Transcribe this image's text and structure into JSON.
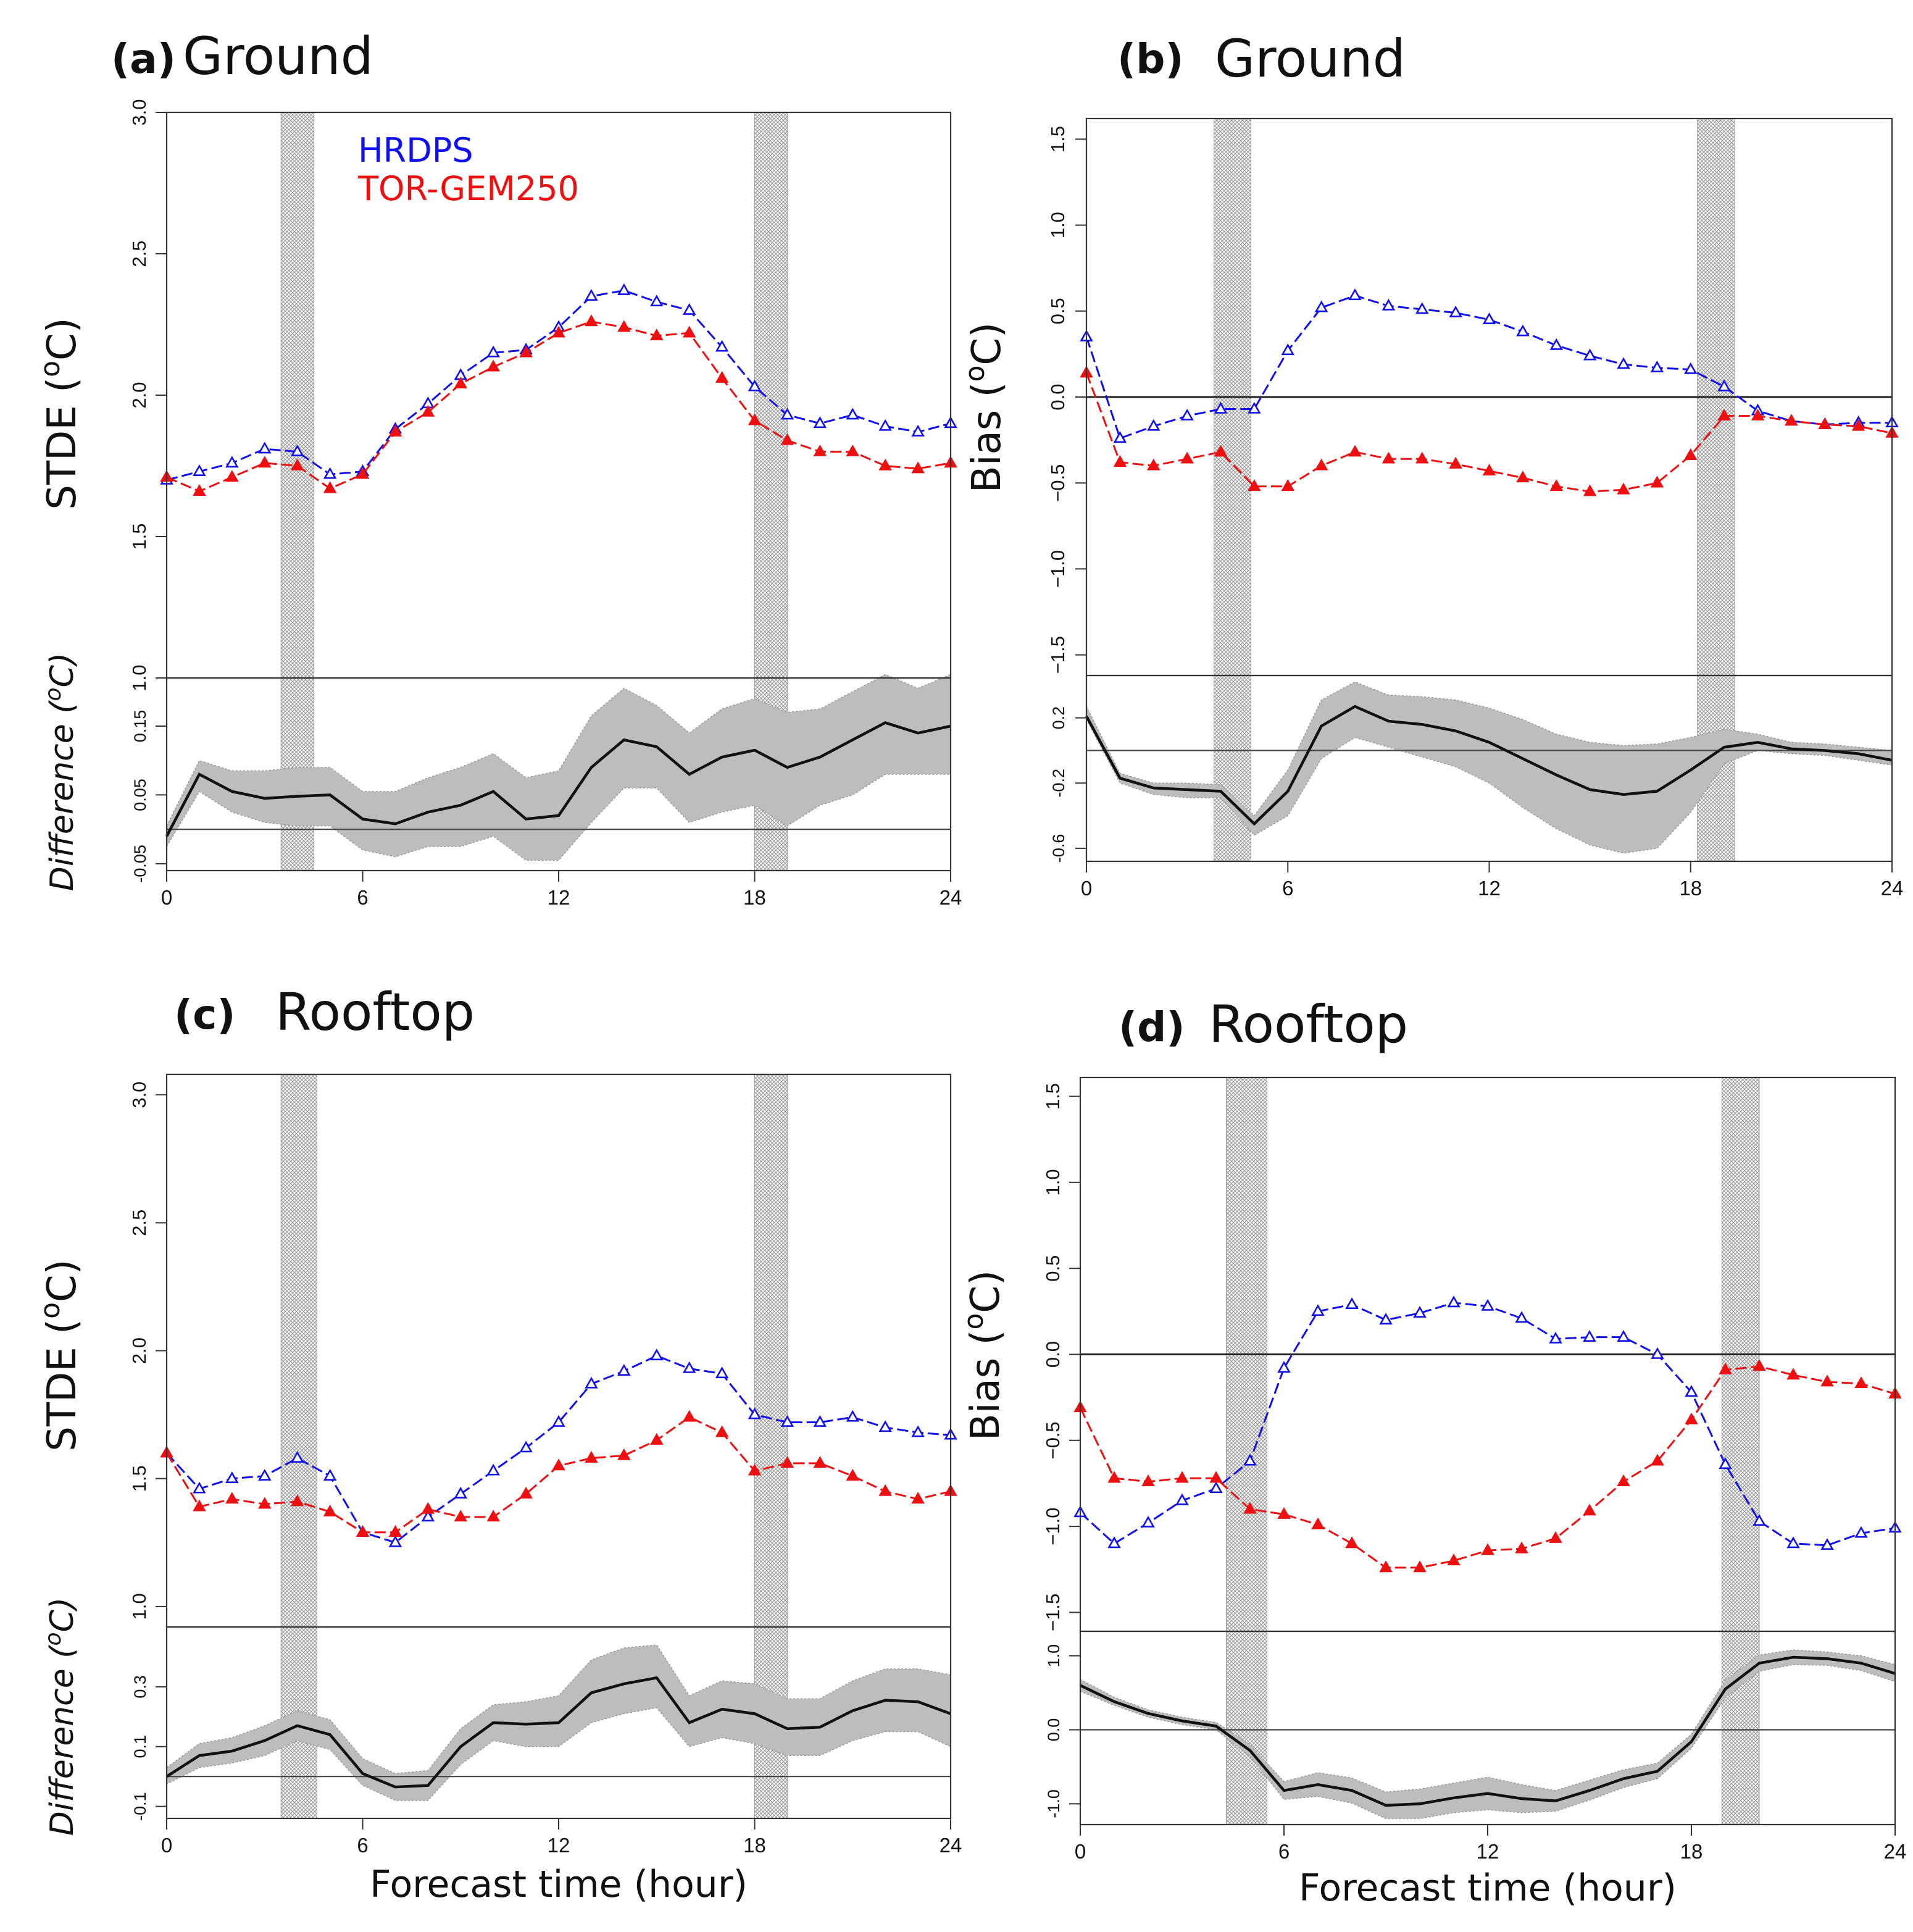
{
  "figure": {
    "legend": [
      {
        "name": "HRDPS",
        "color": "#1010ee"
      },
      {
        "name": "TOR-GEM250",
        "color": "#ee1010"
      }
    ],
    "colors": {
      "difference_line": "#111111",
      "difference_band": "#bdbdbd",
      "hatch": "#9a9a9a"
    }
  },
  "chart_data": [
    {
      "id": "a",
      "panel_label": "(a)",
      "title": "Ground",
      "type": "line",
      "ylabel": "STDE (oC)",
      "ylabel_main": "STDE (",
      "ylabel_sup": "o",
      "ylabel_unit": "C)",
      "diff_ylabel_main": "Difference (",
      "diff_ylabel_sup": "o",
      "diff_ylabel_unit": "C)",
      "xlabel": "",
      "x": [
        0,
        1,
        2,
        3,
        4,
        5,
        6,
        7,
        8,
        9,
        10,
        11,
        12,
        13,
        14,
        15,
        16,
        17,
        18,
        19,
        20,
        21,
        22,
        23,
        24
      ],
      "xlim": [
        0,
        24
      ],
      "xticks": [
        0,
        6,
        12,
        18,
        24
      ],
      "xtick_labels": [
        "0",
        "6",
        "12",
        "18",
        "24"
      ],
      "ylim": [
        1.0,
        3.0
      ],
      "yticks": [
        1.0,
        1.5,
        2.0,
        2.5,
        3.0
      ],
      "ytick_labels": [
        "1.0",
        "1.5",
        "2.0",
        "2.5",
        "3.0"
      ],
      "shaded_periods": [
        [
          3.5,
          4.5
        ],
        [
          18,
          19
        ]
      ],
      "series": [
        {
          "name": "HRDPS",
          "values": [
            1.7,
            1.73,
            1.76,
            1.81,
            1.8,
            1.72,
            1.73,
            1.88,
            1.97,
            2.07,
            2.15,
            2.16,
            2.24,
            2.35,
            2.37,
            2.33,
            2.3,
            2.17,
            2.03,
            1.93,
            1.9,
            1.93,
            1.89,
            1.87,
            1.9
          ]
        },
        {
          "name": "TOR-GEM250",
          "values": [
            1.71,
            1.66,
            1.71,
            1.76,
            1.75,
            1.67,
            1.72,
            1.87,
            1.94,
            2.04,
            2.1,
            2.15,
            2.22,
            2.26,
            2.24,
            2.21,
            2.22,
            2.06,
            1.91,
            1.84,
            1.8,
            1.8,
            1.75,
            1.74,
            1.76
          ]
        }
      ],
      "difference": {
        "ylim": [
          -0.06,
          0.22
        ],
        "yticks": [
          -0.05,
          0.05,
          0.15
        ],
        "ytick_labels": [
          "-0.05",
          "0.05",
          "0.15"
        ],
        "mean": [
          -0.01,
          0.08,
          0.055,
          0.045,
          0.048,
          0.05,
          0.015,
          0.008,
          0.025,
          0.035,
          0.055,
          0.015,
          0.02,
          0.09,
          0.13,
          0.12,
          0.08,
          0.105,
          0.115,
          0.09,
          0.105,
          0.13,
          0.155,
          0.14,
          0.15
        ],
        "lower": [
          -0.025,
          0.055,
          0.025,
          0.01,
          0.005,
          0.005,
          -0.03,
          -0.04,
          -0.025,
          -0.025,
          -0.01,
          -0.045,
          -0.045,
          0.01,
          0.06,
          0.06,
          0.01,
          0.025,
          0.035,
          0.005,
          0.035,
          0.05,
          0.08,
          0.08,
          0.08
        ],
        "upper": [
          0.005,
          0.1,
          0.085,
          0.085,
          0.09,
          0.09,
          0.055,
          0.055,
          0.075,
          0.09,
          0.11,
          0.075,
          0.085,
          0.165,
          0.205,
          0.18,
          0.14,
          0.175,
          0.19,
          0.17,
          0.175,
          0.2,
          0.225,
          0.205,
          0.225
        ]
      }
    },
    {
      "id": "b",
      "panel_label": "(b)",
      "title": "Ground",
      "type": "line",
      "ylabel": "Bias (oC)",
      "ylabel_main": "Bias (",
      "ylabel_sup": "o",
      "ylabel_unit": "C)",
      "diff_ylabel_main": "",
      "diff_ylabel_sup": "",
      "diff_ylabel_unit": "",
      "xlabel": "",
      "x": [
        0,
        1,
        2,
        3,
        4,
        5,
        6,
        7,
        8,
        9,
        10,
        11,
        12,
        13,
        14,
        15,
        16,
        17,
        18,
        19,
        20,
        21,
        22,
        23,
        24
      ],
      "xlim": [
        0,
        24
      ],
      "xticks": [
        0,
        6,
        12,
        18,
        24
      ],
      "xtick_labels": [
        "0",
        "6",
        "12",
        "18",
        "24"
      ],
      "ylim": [
        -1.62,
        1.62
      ],
      "yticks": [
        -1.5,
        -1.0,
        -0.5,
        0.0,
        0.5,
        1.0,
        1.5
      ],
      "ytick_labels": [
        "−1.5",
        "−1.0",
        "−0.5",
        "0.0",
        "0.5",
        "1.0",
        "1.5"
      ],
      "zero_line": 0,
      "shaded_periods": [
        [
          3.8,
          4.9
        ],
        [
          18.2,
          19.3
        ]
      ],
      "series": [
        {
          "name": "HRDPS",
          "values": [
            0.35,
            -0.24,
            -0.17,
            -0.11,
            -0.07,
            -0.07,
            0.27,
            0.52,
            0.59,
            0.53,
            0.51,
            0.49,
            0.45,
            0.38,
            0.3,
            0.24,
            0.19,
            0.17,
            0.16,
            0.06,
            -0.08,
            -0.14,
            -0.16,
            -0.15,
            -0.15
          ]
        },
        {
          "name": "TOR-GEM250",
          "values": [
            0.14,
            -0.38,
            -0.4,
            -0.36,
            -0.32,
            -0.52,
            -0.52,
            -0.4,
            -0.32,
            -0.36,
            -0.36,
            -0.39,
            -0.43,
            -0.47,
            -0.52,
            -0.55,
            -0.54,
            -0.5,
            -0.34,
            -0.11,
            -0.11,
            -0.14,
            -0.16,
            -0.17,
            -0.21
          ]
        }
      ],
      "difference": {
        "ylim": [
          -0.68,
          0.46
        ],
        "yticks": [
          -0.6,
          -0.2,
          0.2
        ],
        "ytick_labels": [
          "-0.6",
          "-0.2",
          "0.2"
        ],
        "mean": [
          0.21,
          -0.17,
          -0.23,
          -0.24,
          -0.25,
          -0.45,
          -0.25,
          0.15,
          0.27,
          0.18,
          0.16,
          0.12,
          0.05,
          -0.05,
          -0.15,
          -0.24,
          -0.27,
          -0.25,
          -0.12,
          0.02,
          0.05,
          0.01,
          0.0,
          -0.02,
          -0.06
        ],
        "lower": [
          0.19,
          -0.2,
          -0.27,
          -0.29,
          -0.29,
          -0.52,
          -0.4,
          -0.05,
          0.08,
          0.02,
          -0.04,
          -0.1,
          -0.2,
          -0.35,
          -0.48,
          -0.58,
          -0.63,
          -0.6,
          -0.38,
          -0.08,
          0.0,
          -0.02,
          -0.03,
          -0.06,
          -0.09
        ],
        "upper": [
          0.27,
          -0.14,
          -0.2,
          -0.2,
          -0.21,
          -0.4,
          -0.12,
          0.31,
          0.42,
          0.34,
          0.33,
          0.31,
          0.26,
          0.19,
          0.1,
          0.05,
          0.03,
          0.04,
          0.08,
          0.13,
          0.1,
          0.05,
          0.04,
          0.02,
          0.0
        ]
      }
    },
    {
      "id": "c",
      "panel_label": "(c)",
      "title": "Rooftop",
      "type": "line",
      "ylabel": "STDE (oC)",
      "ylabel_main": "STDE (",
      "ylabel_sup": "o",
      "ylabel_unit": "C)",
      "diff_ylabel_main": "Difference (",
      "diff_ylabel_sup": "o",
      "diff_ylabel_unit": "C)",
      "xlabel": "Forecast time (hour)",
      "x": [
        0,
        1,
        2,
        3,
        4,
        5,
        6,
        7,
        8,
        9,
        10,
        11,
        12,
        13,
        14,
        15,
        16,
        17,
        18,
        19,
        20,
        21,
        22,
        23,
        24
      ],
      "xlim": [
        0,
        24
      ],
      "xticks": [
        0,
        6,
        12,
        18,
        24
      ],
      "xtick_labels": [
        "0",
        "6",
        "12",
        "18",
        "24"
      ],
      "ylim": [
        0.92,
        3.08
      ],
      "yticks": [
        1.0,
        1.5,
        2.0,
        2.5,
        3.0
      ],
      "ytick_labels": [
        "1.0",
        "1.5",
        "2.0",
        "2.5",
        "3.0"
      ],
      "shaded_periods": [
        [
          3.5,
          4.6
        ],
        [
          18,
          19
        ]
      ],
      "series": [
        {
          "name": "HRDPS",
          "values": [
            1.6,
            1.46,
            1.5,
            1.51,
            1.58,
            1.51,
            1.29,
            1.25,
            1.35,
            1.44,
            1.53,
            1.62,
            1.72,
            1.87,
            1.92,
            1.98,
            1.93,
            1.91,
            1.75,
            1.72,
            1.72,
            1.74,
            1.7,
            1.68,
            1.67
          ]
        },
        {
          "name": "TOR-GEM250",
          "values": [
            1.6,
            1.39,
            1.42,
            1.4,
            1.41,
            1.37,
            1.29,
            1.29,
            1.38,
            1.35,
            1.35,
            1.44,
            1.55,
            1.58,
            1.59,
            1.65,
            1.74,
            1.68,
            1.53,
            1.56,
            1.56,
            1.51,
            1.45,
            1.42,
            1.45
          ]
        }
      ],
      "difference": {
        "ylim": [
          -0.14,
          0.5
        ],
        "yticks": [
          -0.1,
          0.1,
          0.3
        ],
        "ytick_labels": [
          "-0.1",
          "0.1",
          "0.3"
        ],
        "mean": [
          0.0,
          0.07,
          0.085,
          0.12,
          0.17,
          0.14,
          0.01,
          -0.035,
          -0.03,
          0.1,
          0.18,
          0.175,
          0.18,
          0.28,
          0.31,
          0.33,
          0.18,
          0.225,
          0.21,
          0.16,
          0.165,
          0.22,
          0.255,
          0.25,
          0.21
        ],
        "lower": [
          -0.025,
          0.03,
          0.045,
          0.07,
          0.12,
          0.09,
          -0.03,
          -0.08,
          -0.08,
          0.04,
          0.12,
          0.1,
          0.1,
          0.18,
          0.21,
          0.23,
          0.1,
          0.13,
          0.11,
          0.07,
          0.07,
          0.12,
          0.15,
          0.15,
          0.1
        ],
        "upper": [
          0.03,
          0.11,
          0.13,
          0.17,
          0.22,
          0.19,
          0.06,
          0.01,
          0.02,
          0.16,
          0.24,
          0.25,
          0.27,
          0.39,
          0.43,
          0.44,
          0.27,
          0.32,
          0.31,
          0.26,
          0.26,
          0.32,
          0.36,
          0.36,
          0.34
        ]
      }
    },
    {
      "id": "d",
      "panel_label": "(d)",
      "title": "Rooftop",
      "type": "line",
      "ylabel": "Bias (oC)",
      "ylabel_main": "Bias (",
      "ylabel_sup": "o",
      "ylabel_unit": "C)",
      "diff_ylabel_main": "",
      "diff_ylabel_sup": "",
      "diff_ylabel_unit": "",
      "xlabel": "Forecast time (hour)",
      "x": [
        0,
        1,
        2,
        3,
        4,
        5,
        6,
        7,
        8,
        9,
        10,
        11,
        12,
        13,
        14,
        15,
        16,
        17,
        18,
        19,
        20,
        21,
        22,
        23,
        24
      ],
      "xlim": [
        0,
        24
      ],
      "xticks": [
        0,
        6,
        12,
        18,
        24
      ],
      "xtick_labels": [
        "0",
        "6",
        "12",
        "18",
        "24"
      ],
      "ylim": [
        -1.61,
        1.61
      ],
      "yticks": [
        -1.5,
        -1.0,
        -0.5,
        0.0,
        0.5,
        1.0,
        1.5
      ],
      "ytick_labels": [
        "−1.5",
        "−1.0",
        "−0.5",
        "0.0",
        "0.5",
        "1.0",
        "1.5"
      ],
      "zero_line": 0,
      "shaded_periods": [
        [
          4.3,
          5.5
        ],
        [
          18.9,
          20
        ]
      ],
      "series": [
        {
          "name": "HRDPS",
          "values": [
            -0.92,
            -1.1,
            -0.98,
            -0.85,
            -0.78,
            -0.62,
            -0.08,
            0.25,
            0.29,
            0.2,
            0.24,
            0.3,
            0.28,
            0.21,
            0.09,
            0.1,
            0.1,
            0.0,
            -0.22,
            -0.64,
            -0.97,
            -1.1,
            -1.11,
            -1.04,
            -1.01
          ]
        },
        {
          "name": "TOR-GEM250",
          "values": [
            -0.31,
            -0.72,
            -0.74,
            -0.72,
            -0.72,
            -0.9,
            -0.93,
            -0.99,
            -1.1,
            -1.24,
            -1.24,
            -1.2,
            -1.14,
            -1.13,
            -1.07,
            -0.91,
            -0.74,
            -0.62,
            -0.38,
            -0.09,
            -0.07,
            -0.12,
            -0.16,
            -0.17,
            -0.23
          ]
        }
      ],
      "difference": {
        "ylim": [
          -1.28,
          1.33
        ],
        "yticks": [
          -1.0,
          0.0,
          1.0
        ],
        "ytick_labels": [
          "-1.0",
          "0.0",
          "1.0"
        ],
        "mean": [
          0.6,
          0.38,
          0.22,
          0.12,
          0.05,
          -0.28,
          -0.82,
          -0.74,
          -0.82,
          -1.02,
          -1.0,
          -0.92,
          -0.86,
          -0.93,
          -0.96,
          -0.82,
          -0.66,
          -0.56,
          -0.16,
          0.55,
          0.9,
          0.98,
          0.96,
          0.9,
          0.76
        ],
        "lower": [
          0.52,
          0.33,
          0.17,
          0.07,
          0.0,
          -0.36,
          -0.94,
          -0.9,
          -0.99,
          -1.2,
          -1.2,
          -1.12,
          -1.08,
          -1.12,
          -1.1,
          -0.95,
          -0.78,
          -0.66,
          -0.25,
          0.43,
          0.79,
          0.88,
          0.87,
          0.8,
          0.65
        ],
        "upper": [
          0.68,
          0.44,
          0.27,
          0.17,
          0.1,
          -0.2,
          -0.7,
          -0.58,
          -0.65,
          -0.84,
          -0.8,
          -0.72,
          -0.64,
          -0.74,
          -0.82,
          -0.68,
          -0.54,
          -0.45,
          -0.06,
          0.67,
          1.01,
          1.08,
          1.05,
          1.0,
          0.88
        ]
      }
    }
  ]
}
